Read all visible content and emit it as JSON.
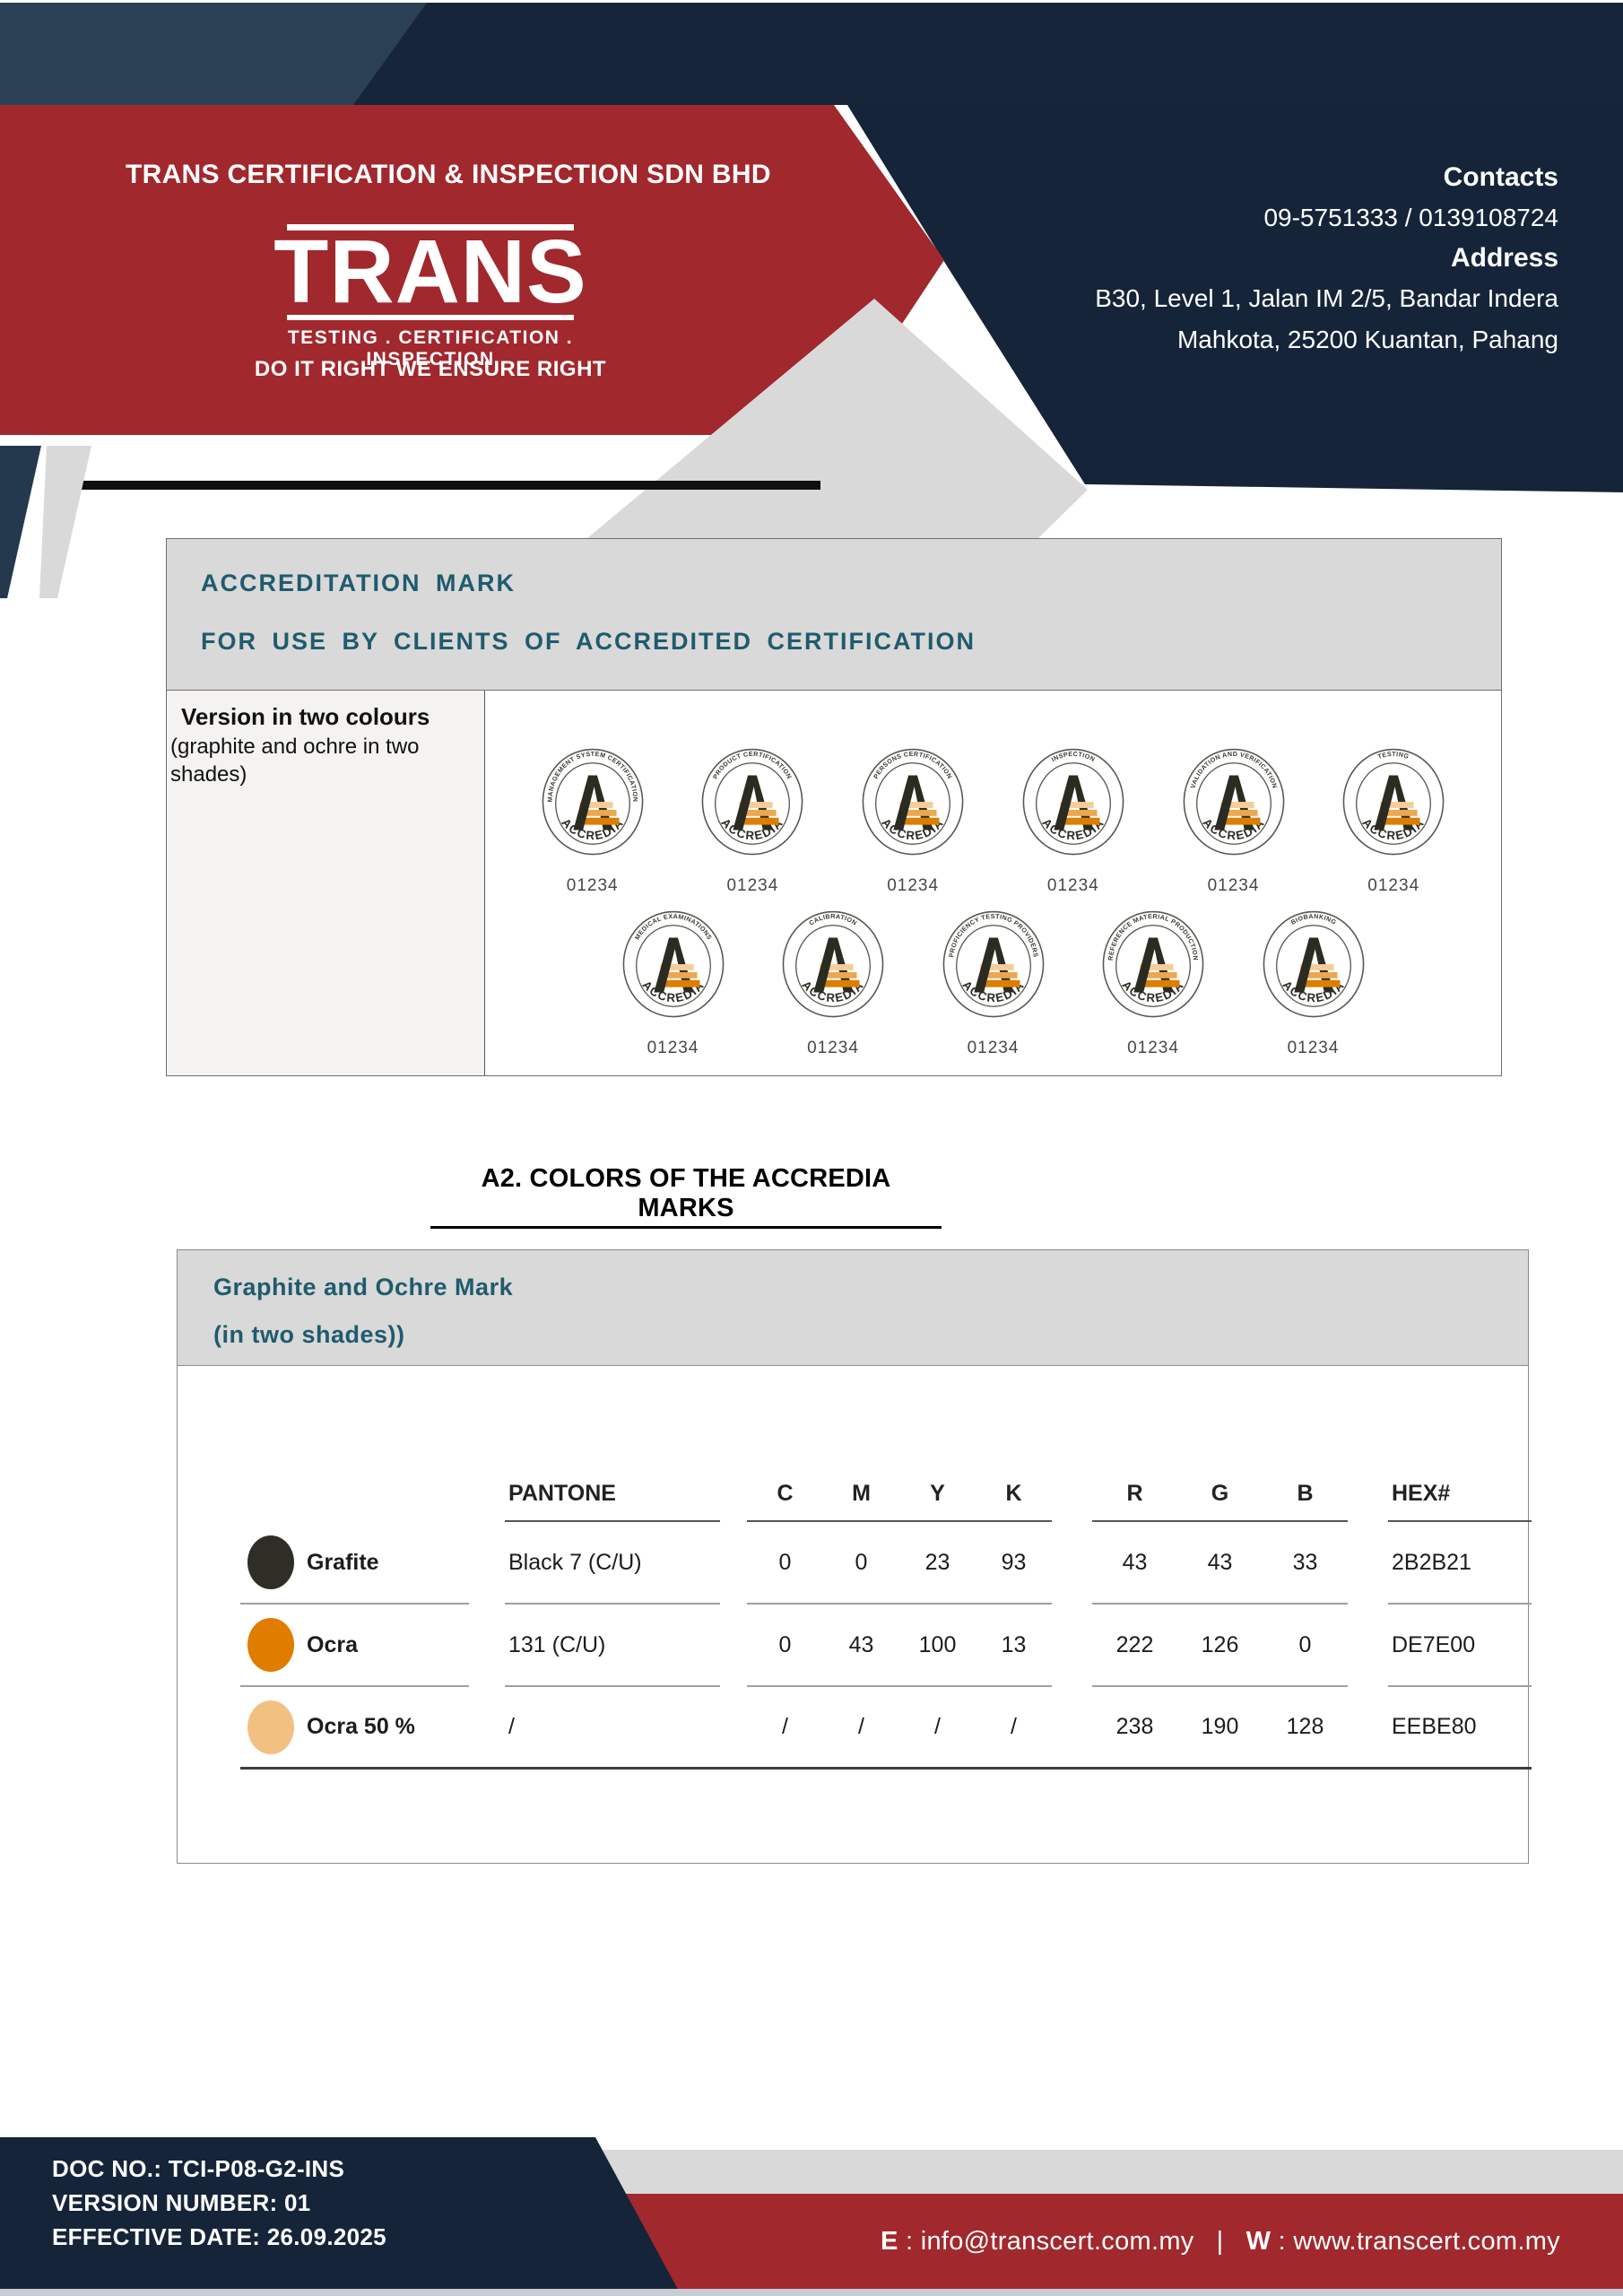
{
  "header": {
    "company_name": "TRANS CERTIFICATION & INSPECTION SDN BHD",
    "logo_text": "TRANS",
    "logo_subtitle": "TESTING . CERTIFICATION . INSPECTION",
    "tagline": "DO IT RIGHT WE ENSURE RIGHT",
    "contacts_label": "Contacts",
    "contacts_value": "09-5751333 / 0139108724",
    "address_label": "Address",
    "address_line1": "B30, Level 1, Jalan IM 2/5, Bandar Indera",
    "address_line2": "Mahkota, 25200 Kuantan, Pahang"
  },
  "accreditation": {
    "title_line1": "ACCREDITATION  MARK",
    "title_line2": "FOR  USE  BY  CLIENTS  OF  ACCREDITED  CERTIFICATION",
    "version_label": "Version in two colours",
    "version_note": "(graphite and ochre in two shades)",
    "badge_bottom_text": "ACCREDIA",
    "badge_number": "01234",
    "badges_row1": [
      "MANAGEMENT SYSTEM CERTIFICATION",
      "PRODUCT CERTIFICATION",
      "PERSONS CERTIFICATION",
      "INSPECTION",
      "VALIDATION AND VERIFICATION",
      "TESTING"
    ],
    "badges_row2": [
      "MEDICAL EXAMINATIONS",
      "CALIBRATION",
      "PROFICIENCY TESTING PROVIDERS",
      "REFERENCE MATERIAL PRODUCTION",
      "BIOBANKING"
    ]
  },
  "colors_section": {
    "heading": "A2. COLORS OF THE ACCREDIA MARKS",
    "subheading_line1": "Graphite and Ochre Mark",
    "subheading_line2": "(in two shades))",
    "table": {
      "headers": {
        "pantone": "PANTONE",
        "c": "C",
        "m": "M",
        "y": "Y",
        "k": "K",
        "r": "R",
        "g": "G",
        "b": "B",
        "hex": "HEX#"
      },
      "rows": [
        {
          "name": "Grafite",
          "swatch": "#2F2E26",
          "pantone": "Black 7 (C/U)",
          "c": "0",
          "m": "0",
          "y": "23",
          "k": "93",
          "r": "43",
          "g": "43",
          "b": "33",
          "hex": "2B2B21"
        },
        {
          "name": "Ocra",
          "swatch": "#E07C00",
          "pantone": "131 (C/U)",
          "c": "0",
          "m": "43",
          "y": "100",
          "k": "13",
          "r": "222",
          "g": "126",
          "b": "0",
          "hex": "DE7E00"
        },
        {
          "name": "Ocra 50 %",
          "swatch": "#F2C182",
          "pantone": "/",
          "c": "/",
          "m": "/",
          "y": "/",
          "k": "/",
          "r": "238",
          "g": "190",
          "b": "128",
          "hex": "EEBE80"
        }
      ]
    }
  },
  "footer": {
    "doc_no": "DOC NO.: TCI-P08-G2-INS",
    "version_number": "VERSION NUMBER: 01",
    "effective_date": "EFFECTIVE DATE: 26.09.2025",
    "email_label": "E",
    "email": "info@transcert.com.my",
    "separator": "|",
    "web_label": "W",
    "website": "www.transcert.com.my"
  },
  "theme": {
    "red": "#A1282D",
    "navy": "#152438",
    "navy_light": "#2B4055",
    "teal_heading": "#1F5B6D",
    "gray_panel": "#D9D9D9",
    "graphite": "#2B2B21",
    "ocra": "#DE7E00",
    "ocra_50": "#EEBE80"
  }
}
